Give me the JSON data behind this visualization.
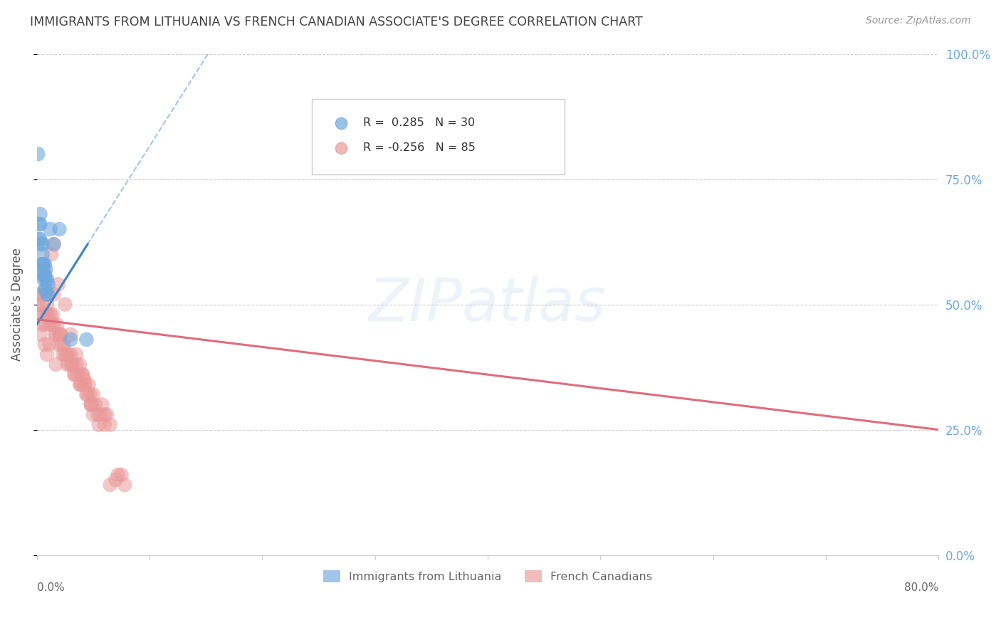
{
  "title": "IMMIGRANTS FROM LITHUANIA VS FRENCH CANADIAN ASSOCIATE'S DEGREE CORRELATION CHART",
  "source": "Source: ZipAtlas.com",
  "ylabel": "Associate's Degree",
  "watermark": "ZIPatlas",
  "legend_blue_r": "R =  0.285",
  "legend_blue_n": "N = 30",
  "legend_pink_r": "R = -0.256",
  "legend_pink_n": "N = 85",
  "blue_color": "#6fa8dc",
  "pink_color": "#ea9999",
  "blue_line_color": "#3d85c8",
  "pink_line_color": "#e06c7d",
  "dashed_line_color": "#a4c2f4",
  "background_color": "#ffffff",
  "grid_color": "#cccccc",
  "title_color": "#434343",
  "source_color": "#999999",
  "right_axis_color": "#6fa8dc",
  "right_yticklabels": [
    "0.0%",
    "25.0%",
    "50.0%",
    "75.0%",
    "100.0%"
  ],
  "xlim": [
    0.0,
    0.8
  ],
  "ylim": [
    0.0,
    1.0
  ],
  "blue_line_x0": 0.0,
  "blue_line_x1": 0.045,
  "blue_line_y0": 0.46,
  "blue_line_y1": 0.62,
  "pink_line_x0": 0.0,
  "pink_line_x1": 0.8,
  "pink_line_y0": 0.47,
  "pink_line_y1": 0.25,
  "blue_scatter_x": [
    0.001,
    0.002,
    0.002,
    0.003,
    0.003,
    0.003,
    0.004,
    0.004,
    0.005,
    0.005,
    0.005,
    0.005,
    0.006,
    0.006,
    0.006,
    0.007,
    0.007,
    0.007,
    0.008,
    0.008,
    0.008,
    0.009,
    0.009,
    0.01,
    0.01,
    0.012,
    0.015,
    0.02,
    0.03,
    0.044
  ],
  "blue_scatter_y": [
    0.8,
    0.63,
    0.66,
    0.63,
    0.66,
    0.68,
    0.58,
    0.62,
    0.56,
    0.58,
    0.6,
    0.62,
    0.55,
    0.56,
    0.58,
    0.53,
    0.56,
    0.58,
    0.53,
    0.55,
    0.57,
    0.52,
    0.55,
    0.52,
    0.54,
    0.65,
    0.62,
    0.65,
    0.43,
    0.43
  ],
  "pink_scatter_x": [
    0.001,
    0.002,
    0.003,
    0.004,
    0.005,
    0.006,
    0.007,
    0.007,
    0.008,
    0.009,
    0.01,
    0.01,
    0.011,
    0.012,
    0.013,
    0.014,
    0.015,
    0.015,
    0.016,
    0.017,
    0.018,
    0.019,
    0.02,
    0.021,
    0.022,
    0.023,
    0.024,
    0.025,
    0.026,
    0.027,
    0.028,
    0.029,
    0.03,
    0.031,
    0.032,
    0.033,
    0.034,
    0.035,
    0.036,
    0.037,
    0.038,
    0.039,
    0.04,
    0.041,
    0.042,
    0.043,
    0.044,
    0.045,
    0.046,
    0.047,
    0.048,
    0.049,
    0.05,
    0.052,
    0.054,
    0.056,
    0.058,
    0.06,
    0.062,
    0.065,
    0.003,
    0.005,
    0.007,
    0.009,
    0.011,
    0.013,
    0.015,
    0.017,
    0.019,
    0.021,
    0.025,
    0.03,
    0.035,
    0.038,
    0.04,
    0.042,
    0.048,
    0.05,
    0.055,
    0.06,
    0.065,
    0.07,
    0.072,
    0.075,
    0.078
  ],
  "pink_scatter_y": [
    0.5,
    0.52,
    0.48,
    0.5,
    0.52,
    0.48,
    0.46,
    0.52,
    0.48,
    0.5,
    0.48,
    0.52,
    0.46,
    0.48,
    0.46,
    0.48,
    0.46,
    0.52,
    0.44,
    0.44,
    0.46,
    0.42,
    0.44,
    0.44,
    0.42,
    0.4,
    0.42,
    0.4,
    0.4,
    0.38,
    0.4,
    0.38,
    0.4,
    0.38,
    0.38,
    0.36,
    0.36,
    0.38,
    0.36,
    0.36,
    0.34,
    0.34,
    0.34,
    0.36,
    0.34,
    0.34,
    0.32,
    0.32,
    0.34,
    0.32,
    0.3,
    0.3,
    0.32,
    0.3,
    0.28,
    0.28,
    0.3,
    0.28,
    0.28,
    0.26,
    0.44,
    0.46,
    0.42,
    0.4,
    0.42,
    0.6,
    0.62,
    0.38,
    0.54,
    0.44,
    0.5,
    0.44,
    0.4,
    0.38,
    0.36,
    0.35,
    0.3,
    0.28,
    0.26,
    0.26,
    0.14,
    0.15,
    0.16,
    0.16,
    0.14
  ]
}
